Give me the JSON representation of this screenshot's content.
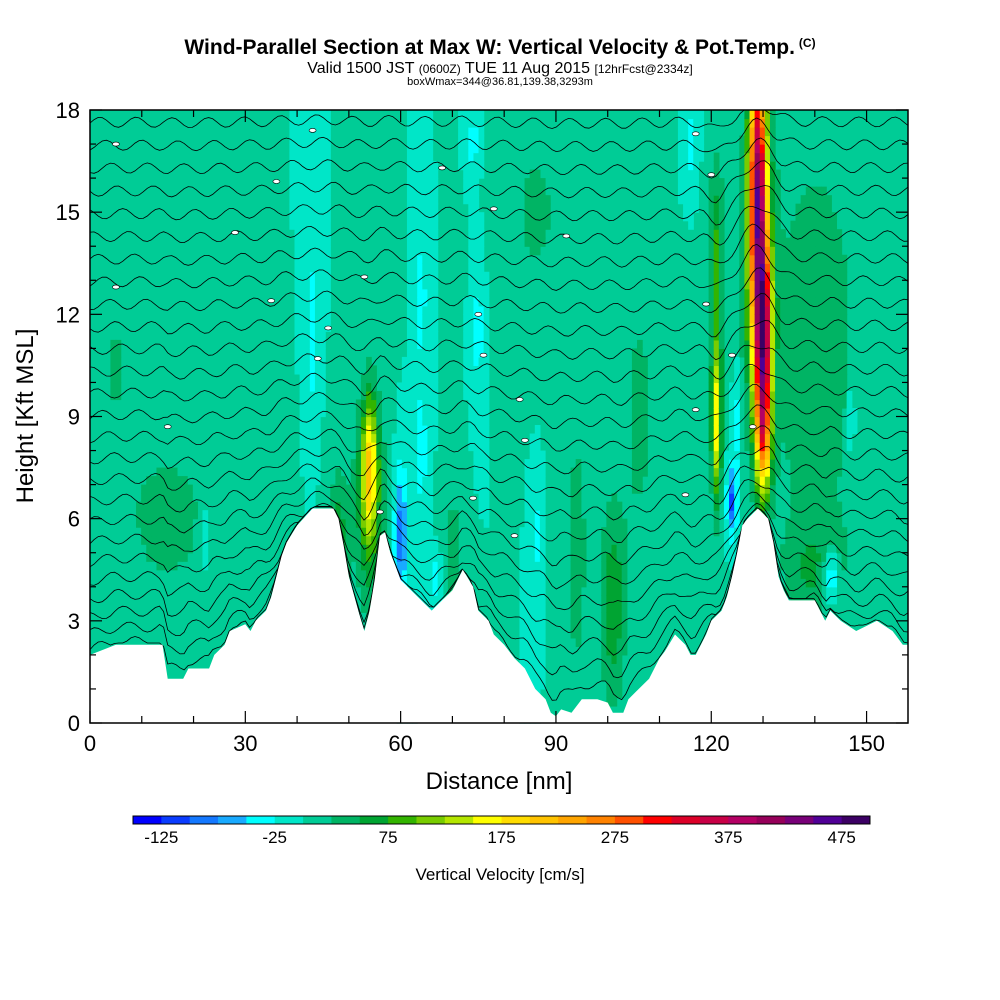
{
  "header": {
    "title": "Wind-Parallel Section at Max W: Vertical Velocity & Pot.Temp.",
    "copyright": "(C)",
    "valid_prefix": "Valid 1500 JST",
    "valid_utc": "(0600Z)",
    "valid_date": "TUE 11 Aug 2015",
    "forecast": "[12hrFcst@2334z]",
    "box": "boxWmax=344@36.81,139.38,3293m"
  },
  "chart_data": {
    "type": "heatmap",
    "xlabel": "Distance [nm]",
    "ylabel": "Height [Kft MSL]",
    "xlim": [
      0,
      158
    ],
    "ylim": [
      0,
      18
    ],
    "xticks": [
      0,
      30,
      60,
      90,
      120,
      150
    ],
    "yticks": [
      0,
      3,
      6,
      9,
      12,
      15,
      18
    ],
    "x_tick_labels": [
      "0",
      "30",
      "60",
      "90",
      "120",
      "150"
    ],
    "y_tick_labels": [
      "0",
      "3",
      "6",
      "9",
      "12",
      "15",
      "18"
    ],
    "grid": false,
    "background_value": 0,
    "terrain": [
      [
        0,
        2.0
      ],
      [
        5,
        2.3
      ],
      [
        14,
        2.3
      ],
      [
        15,
        1.3
      ],
      [
        18,
        1.3
      ],
      [
        19,
        1.6
      ],
      [
        23,
        1.6
      ],
      [
        24,
        2.0
      ],
      [
        26,
        2.3
      ],
      [
        27,
        2.7
      ],
      [
        30,
        2.9
      ],
      [
        31,
        2.7
      ],
      [
        32,
        3.0
      ],
      [
        34,
        3.3
      ],
      [
        35,
        3.7
      ],
      [
        36,
        4.3
      ],
      [
        37,
        4.9
      ],
      [
        38,
        5.3
      ],
      [
        40,
        5.8
      ],
      [
        43,
        6.3
      ],
      [
        47,
        6.3
      ],
      [
        48,
        6.0
      ],
      [
        49,
        5.2
      ],
      [
        50,
        4.3
      ],
      [
        52,
        3.2
      ],
      [
        53,
        2.7
      ],
      [
        54,
        3.3
      ],
      [
        55,
        4.2
      ],
      [
        56,
        5.5
      ],
      [
        57,
        5.6
      ],
      [
        58,
        5.0
      ],
      [
        59,
        4.6
      ],
      [
        60,
        4.2
      ],
      [
        62,
        3.9
      ],
      [
        64,
        3.6
      ],
      [
        66,
        3.3
      ],
      [
        68,
        3.6
      ],
      [
        70,
        3.9
      ],
      [
        72,
        4.5
      ],
      [
        74,
        4.0
      ],
      [
        75,
        3.3
      ],
      [
        77,
        3.0
      ],
      [
        78,
        2.6
      ],
      [
        80,
        2.3
      ],
      [
        82,
        1.9
      ],
      [
        84,
        1.6
      ],
      [
        85,
        1.3
      ],
      [
        86,
        1.0
      ],
      [
        88,
        0.7
      ],
      [
        89,
        0.3
      ],
      [
        90,
        0.2
      ],
      [
        91,
        0.4
      ],
      [
        93,
        0.3
      ],
      [
        95,
        0.7
      ],
      [
        98,
        0.7
      ],
      [
        100,
        0.6
      ],
      [
        101,
        0.3
      ],
      [
        103,
        0.3
      ],
      [
        104,
        0.7
      ],
      [
        106,
        1.0
      ],
      [
        108,
        1.3
      ],
      [
        110,
        1.9
      ],
      [
        111,
        2.1
      ],
      [
        113,
        2.6
      ],
      [
        115,
        2.3
      ],
      [
        116,
        2.0
      ],
      [
        117,
        2.0
      ],
      [
        118,
        2.3
      ],
      [
        119,
        2.6
      ],
      [
        120,
        3.0
      ],
      [
        122,
        3.3
      ],
      [
        123,
        3.7
      ],
      [
        124,
        4.3
      ],
      [
        125,
        5.0
      ],
      [
        126,
        5.8
      ],
      [
        127,
        6.0
      ],
      [
        129,
        6.3
      ],
      [
        131,
        6.0
      ],
      [
        132,
        5.3
      ],
      [
        133,
        4.3
      ],
      [
        134,
        3.9
      ],
      [
        135,
        3.6
      ],
      [
        140,
        3.6
      ],
      [
        142,
        3.0
      ],
      [
        143,
        3.3
      ],
      [
        145,
        3.0
      ],
      [
        148,
        2.7
      ],
      [
        152,
        3.0
      ],
      [
        155,
        2.7
      ],
      [
        157,
        2.3
      ],
      [
        158,
        2.3
      ]
    ],
    "features": [
      {
        "x": 129,
        "z": 16.0,
        "sx": 1.6,
        "sz": 3.5,
        "value": 340
      },
      {
        "x": 130,
        "z": 11.5,
        "sx": 1.6,
        "sz": 2.5,
        "value": 344
      },
      {
        "x": 130,
        "z": 8.5,
        "sx": 1.5,
        "sz": 1.8,
        "value": 220
      },
      {
        "x": 129,
        "z": 13.5,
        "sx": 2.6,
        "sz": 4.5,
        "value": 120
      },
      {
        "x": 121,
        "z": 9.0,
        "sx": 1.0,
        "sz": 2.5,
        "value": 170
      },
      {
        "x": 121,
        "z": 14.0,
        "sx": 1.4,
        "sz": 2.5,
        "value": 75
      },
      {
        "x": 54,
        "z": 7.5,
        "sx": 1.4,
        "sz": 2.0,
        "value": 150
      },
      {
        "x": 54,
        "z": 6.5,
        "sx": 3.0,
        "sz": 3.2,
        "value": 75
      },
      {
        "x": 48,
        "z": 5.5,
        "sx": 2.0,
        "sz": 2.0,
        "value": 60
      },
      {
        "x": 101,
        "z": 3.5,
        "sx": 2.5,
        "sz": 3.0,
        "value": 70
      },
      {
        "x": 94,
        "z": 5.0,
        "sx": 2.0,
        "sz": 4.0,
        "value": 40
      },
      {
        "x": 140,
        "z": 11.0,
        "sx": 10.0,
        "sz": 7.0,
        "value": 40
      },
      {
        "x": 140,
        "z": 4.5,
        "sx": 6.0,
        "sz": 1.5,
        "value": 40
      },
      {
        "x": 15,
        "z": 6.0,
        "sx": 10.0,
        "sz": 2.5,
        "value": 35
      },
      {
        "x": 5,
        "z": 10.5,
        "sx": 3.0,
        "sz": 2.0,
        "value": 30
      },
      {
        "x": 70,
        "z": 5.0,
        "sx": 2.0,
        "sz": 2.0,
        "value": 40
      },
      {
        "x": 86,
        "z": 15.0,
        "sx": 6.0,
        "sz": 3.0,
        "value": 30
      },
      {
        "x": 106,
        "z": 9.0,
        "sx": 3.0,
        "sz": 4.0,
        "value": 35
      },
      {
        "x": 60,
        "z": 5.5,
        "sx": 1.3,
        "sz": 2.0,
        "value": -90
      },
      {
        "x": 124,
        "z": 6.5,
        "sx": 1.0,
        "sz": 1.0,
        "value": -110
      },
      {
        "x": 143,
        "z": 4.3,
        "sx": 1.5,
        "sz": 0.8,
        "value": -90
      },
      {
        "x": 67,
        "z": 4.2,
        "sx": 1.5,
        "sz": 0.8,
        "value": -40
      },
      {
        "x": 64,
        "z": 8.0,
        "sx": 1.2,
        "sz": 2.0,
        "value": -40
      },
      {
        "x": 75,
        "z": 11.5,
        "sx": 1.0,
        "sz": 2.0,
        "value": -40
      },
      {
        "x": 64,
        "z": 12.5,
        "sx": 1.0,
        "sz": 2.0,
        "value": -40
      },
      {
        "x": 43,
        "z": 11.5,
        "sx": 1.0,
        "sz": 2.5,
        "value": -40
      },
      {
        "x": 22,
        "z": 5.5,
        "sx": 1.0,
        "sz": 1.0,
        "value": -40
      },
      {
        "x": 125,
        "z": 9.0,
        "sx": 0.8,
        "sz": 1.5,
        "value": -40
      },
      {
        "x": 116,
        "z": 17.0,
        "sx": 1.0,
        "sz": 1.0,
        "value": -40
      },
      {
        "x": 74,
        "z": 17.0,
        "sx": 1.0,
        "sz": 1.0,
        "value": -40
      },
      {
        "x": 86,
        "z": 5.5,
        "sx": 0.8,
        "sz": 1.5,
        "value": -40
      },
      {
        "x": 147,
        "z": 9.0,
        "sx": 0.8,
        "sz": 1.5,
        "value": -40
      }
    ],
    "theta_contours": {
      "count": 26,
      "note": "potential temperature isentropes, black contours"
    },
    "contour_labels": [
      {
        "x": 5,
        "z": 17.0
      },
      {
        "x": 43,
        "z": 17.4
      },
      {
        "x": 36,
        "z": 15.9
      },
      {
        "x": 68,
        "z": 16.3
      },
      {
        "x": 28,
        "z": 14.4
      },
      {
        "x": 78,
        "z": 15.1
      },
      {
        "x": 92,
        "z": 14.3
      },
      {
        "x": 5,
        "z": 12.8
      },
      {
        "x": 53,
        "z": 13.1
      },
      {
        "x": 35,
        "z": 12.4
      },
      {
        "x": 75,
        "z": 12.0
      },
      {
        "x": 46,
        "z": 11.6
      },
      {
        "x": 44,
        "z": 10.7
      },
      {
        "x": 76,
        "z": 10.8
      },
      {
        "x": 83,
        "z": 9.5
      },
      {
        "x": 15,
        "z": 8.7
      },
      {
        "x": 84,
        "z": 8.3
      },
      {
        "x": 74,
        "z": 6.6
      },
      {
        "x": 56,
        "z": 6.2
      },
      {
        "x": 82,
        "z": 5.5
      },
      {
        "x": 117,
        "z": 17.3
      },
      {
        "x": 120,
        "z": 16.1
      },
      {
        "x": 119,
        "z": 12.3
      },
      {
        "x": 124,
        "z": 10.8
      },
      {
        "x": 117,
        "z": 9.2
      },
      {
        "x": 128,
        "z": 8.7
      },
      {
        "x": 115,
        "z": 6.7
      }
    ]
  },
  "colorbar": {
    "label": "Vertical Velocity [cm/s]",
    "min": -150,
    "max": 500,
    "step": 25,
    "tick_values": [
      -125,
      -25,
      75,
      175,
      275,
      375,
      475
    ],
    "tick_labels": [
      "-125",
      "-25",
      "75",
      "175",
      "275",
      "375",
      "475"
    ],
    "colors": [
      "#0000ff",
      "#0a3cff",
      "#1478ff",
      "#19aaff",
      "#00ffff",
      "#00e6c8",
      "#00cc96",
      "#00b464",
      "#00a432",
      "#33b400",
      "#78cc00",
      "#b4e600",
      "#ffff00",
      "#ffdc00",
      "#ffc300",
      "#ffa500",
      "#ff8200",
      "#ff5000",
      "#ff0000",
      "#dc0028",
      "#c80046",
      "#b40064",
      "#96005a",
      "#780078",
      "#500096",
      "#3c0064"
    ]
  }
}
